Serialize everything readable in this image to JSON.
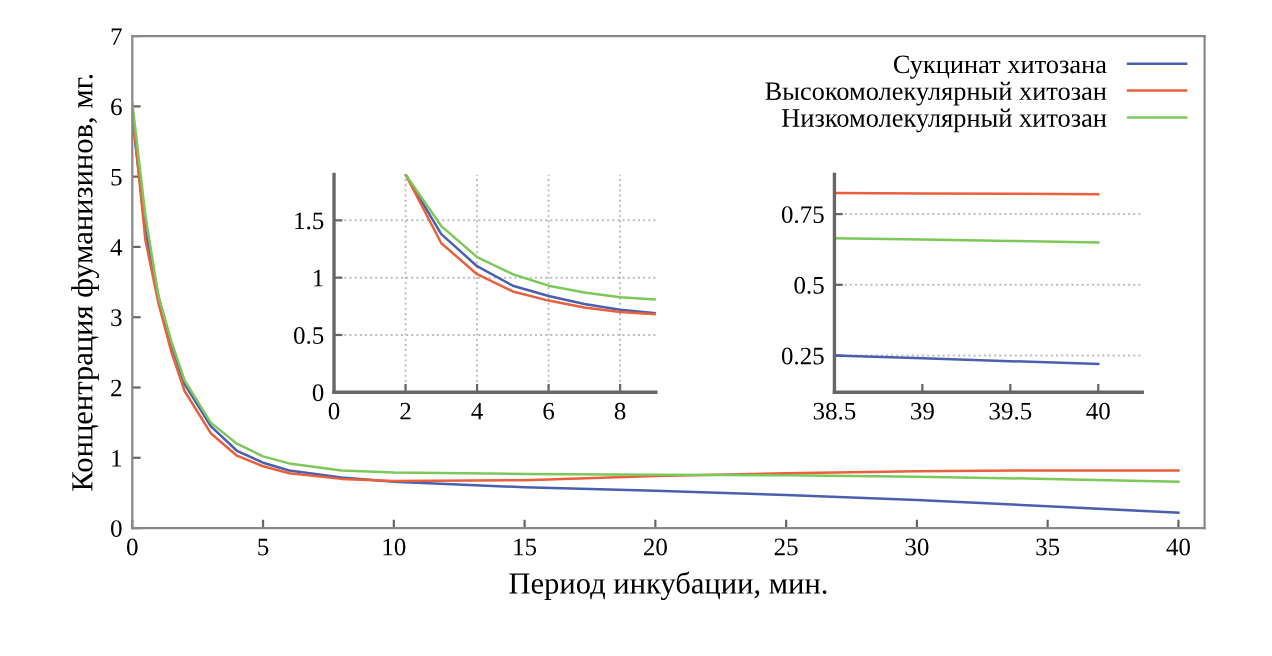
{
  "chart_data": [
    {
      "type": "line",
      "xlabel": "Период инкубации, мин.",
      "ylabel": "Концентрация фуманизинов, мг.",
      "xlim": [
        0,
        41
      ],
      "ylim": [
        0,
        7
      ],
      "xticks": [
        0,
        5,
        10,
        15,
        20,
        25,
        30,
        35,
        40
      ],
      "yticks": [
        0,
        1,
        2,
        3,
        4,
        5,
        6,
        7
      ],
      "grid": false,
      "legend": "top right",
      "series": [
        {
          "name": "Сукцинат хитозана",
          "color": "#4a5fb0",
          "x": [
            0,
            0.5,
            1,
            1.5,
            2,
            3,
            4,
            5,
            6,
            8,
            10,
            15,
            20,
            25,
            30,
            35,
            40
          ],
          "values": [
            5.85,
            4.25,
            3.3,
            2.6,
            2.05,
            1.45,
            1.1,
            0.93,
            0.82,
            0.72,
            0.66,
            0.58,
            0.53,
            0.47,
            0.4,
            0.31,
            0.22
          ]
        },
        {
          "name": "Высокомолекулярный хитозан",
          "color": "#e8603c",
          "x": [
            0,
            0.5,
            1,
            1.5,
            2,
            3,
            4,
            5,
            6,
            8,
            10,
            15,
            20,
            25,
            30,
            35,
            40
          ],
          "values": [
            5.95,
            4.1,
            3.2,
            2.5,
            1.95,
            1.35,
            1.03,
            0.88,
            0.78,
            0.7,
            0.67,
            0.68,
            0.74,
            0.78,
            0.81,
            0.82,
            0.82
          ]
        },
        {
          "name": "Низкомолекулярный хитозан",
          "color": "#7cc85a",
          "x": [
            0,
            0.5,
            1,
            1.5,
            2,
            3,
            4,
            5,
            6,
            8,
            10,
            15,
            20,
            25,
            30,
            35,
            40
          ],
          "values": [
            6.05,
            4.45,
            3.3,
            2.65,
            2.1,
            1.5,
            1.2,
            1.02,
            0.92,
            0.82,
            0.79,
            0.77,
            0.76,
            0.75,
            0.73,
            0.7,
            0.66
          ]
        }
      ]
    },
    {
      "type": "line",
      "xlim": [
        0,
        9
      ],
      "ylim": [
        0,
        1.9
      ],
      "xticks": [
        0,
        2,
        4,
        6,
        8
      ],
      "yticks": [
        0,
        0.5,
        1,
        1.5
      ],
      "grid": true,
      "series": [
        {
          "color": "#4a5fb0",
          "x": [
            2,
            3,
            4,
            5,
            6,
            7,
            8,
            9
          ],
          "values": [
            1.9,
            1.38,
            1.1,
            0.93,
            0.84,
            0.77,
            0.72,
            0.69
          ]
        },
        {
          "color": "#e8603c",
          "x": [
            2,
            3,
            4,
            5,
            6,
            7,
            8,
            9
          ],
          "values": [
            1.9,
            1.3,
            1.03,
            0.88,
            0.8,
            0.74,
            0.7,
            0.68
          ]
        },
        {
          "color": "#7cc85a",
          "x": [
            2,
            3,
            4,
            5,
            6,
            7,
            8,
            9
          ],
          "values": [
            1.9,
            1.45,
            1.18,
            1.03,
            0.93,
            0.87,
            0.83,
            0.81
          ]
        }
      ]
    },
    {
      "type": "line",
      "xlim": [
        38.5,
        40.25
      ],
      "ylim": [
        0.12,
        0.89
      ],
      "xticks": [
        38.5,
        39,
        39.5,
        40
      ],
      "yticks": [
        0.25,
        0.5,
        0.75
      ],
      "grid": "y",
      "series": [
        {
          "color": "#4a5fb0",
          "x": [
            38.5,
            39,
            39.5,
            40
          ],
          "values": [
            0.25,
            0.24,
            0.23,
            0.22
          ]
        },
        {
          "color": "#e8603c",
          "x": [
            38.5,
            39,
            39.5,
            40
          ],
          "values": [
            0.825,
            0.823,
            0.822,
            0.82
          ]
        },
        {
          "color": "#7cc85a",
          "x": [
            38.5,
            39,
            39.5,
            40
          ],
          "values": [
            0.665,
            0.66,
            0.655,
            0.65
          ]
        }
      ]
    }
  ]
}
